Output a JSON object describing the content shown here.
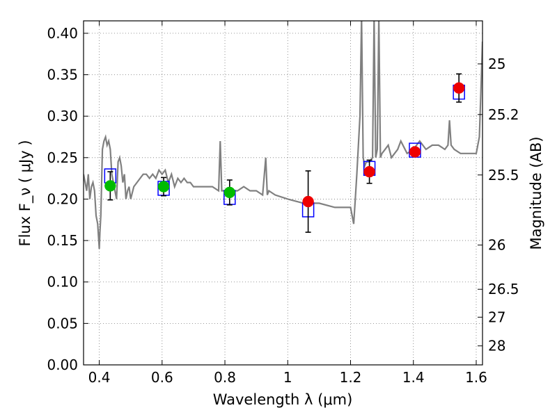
{
  "chart_data": {
    "type": "scatter",
    "xlabel": "Wavelength  λ (μm)",
    "ylabel": "Flux  F_ν  ( μJy )",
    "y2label": "Magnitude (AB)",
    "xlim": [
      0.35,
      1.62
    ],
    "ylim": [
      0.0,
      0.415
    ],
    "grid": true,
    "x_ticks": [
      0.4,
      0.6,
      0.8,
      1.0,
      1.2,
      1.4,
      1.6
    ],
    "x_tick_labels": [
      "0.4",
      "0.6",
      "0.8",
      "1",
      "1.2",
      "1.4",
      "1.6"
    ],
    "y_ticks": [
      0.0,
      0.05,
      0.1,
      0.15,
      0.2,
      0.25,
      0.3,
      0.35,
      0.4
    ],
    "y_tick_labels": [
      "0.00",
      "0.05",
      "0.10",
      "0.15",
      "0.20",
      "0.25",
      "0.30",
      "0.35",
      "0.40"
    ],
    "y2_ticks": [
      25,
      25.2,
      25.5,
      26,
      26.5,
      27,
      28
    ],
    "y2_tick_labels": [
      "25",
      "25.2",
      "25.5",
      "26",
      "26.5",
      "27",
      "28"
    ],
    "series": [
      {
        "kind": "model",
        "color": "#808080",
        "x": [
          0.35,
          0.36,
          0.365,
          0.37,
          0.375,
          0.38,
          0.385,
          0.39,
          0.395,
          0.4,
          0.402,
          0.405,
          0.41,
          0.415,
          0.42,
          0.425,
          0.43,
          0.435,
          0.44,
          0.445,
          0.45,
          0.455,
          0.46,
          0.465,
          0.47,
          0.475,
          0.48,
          0.485,
          0.49,
          0.495,
          0.5,
          0.51,
          0.52,
          0.53,
          0.54,
          0.55,
          0.56,
          0.57,
          0.58,
          0.59,
          0.6,
          0.61,
          0.62,
          0.63,
          0.64,
          0.65,
          0.66,
          0.67,
          0.68,
          0.69,
          0.7,
          0.72,
          0.74,
          0.76,
          0.78,
          0.785,
          0.79,
          0.8,
          0.82,
          0.84,
          0.86,
          0.88,
          0.9,
          0.92,
          0.93,
          0.935,
          0.94,
          0.96,
          1.0,
          1.05,
          1.1,
          1.15,
          1.2,
          1.21,
          1.215,
          1.22,
          1.23,
          1.235,
          1.24,
          1.245,
          1.25,
          1.26,
          1.27,
          1.275,
          1.28,
          1.285,
          1.29,
          1.295,
          1.3,
          1.31,
          1.32,
          1.33,
          1.34,
          1.35,
          1.36,
          1.38,
          1.4,
          1.42,
          1.44,
          1.46,
          1.48,
          1.5,
          1.51,
          1.515,
          1.52,
          1.53,
          1.55,
          1.58,
          1.6,
          1.61,
          1.615,
          1.62
        ],
        "y": [
          0.23,
          0.21,
          0.23,
          0.2,
          0.215,
          0.22,
          0.21,
          0.18,
          0.17,
          0.14,
          0.16,
          0.18,
          0.26,
          0.27,
          0.275,
          0.265,
          0.27,
          0.26,
          0.23,
          0.22,
          0.21,
          0.2,
          0.245,
          0.25,
          0.24,
          0.22,
          0.23,
          0.2,
          0.21,
          0.215,
          0.2,
          0.215,
          0.22,
          0.225,
          0.23,
          0.23,
          0.225,
          0.23,
          0.225,
          0.235,
          0.23,
          0.235,
          0.22,
          0.23,
          0.215,
          0.225,
          0.22,
          0.225,
          0.22,
          0.22,
          0.215,
          0.215,
          0.215,
          0.215,
          0.21,
          0.27,
          0.21,
          0.21,
          0.21,
          0.21,
          0.215,
          0.21,
          0.21,
          0.205,
          0.25,
          0.205,
          0.21,
          0.205,
          0.2,
          0.195,
          0.195,
          0.19,
          0.19,
          0.17,
          0.2,
          0.23,
          0.3,
          0.42,
          0.25,
          0.24,
          0.245,
          0.245,
          0.25,
          0.42,
          0.25,
          0.26,
          0.42,
          0.25,
          0.255,
          0.26,
          0.265,
          0.25,
          0.255,
          0.26,
          0.27,
          0.255,
          0.26,
          0.27,
          0.26,
          0.265,
          0.265,
          0.26,
          0.265,
          0.295,
          0.265,
          0.26,
          0.255,
          0.255,
          0.255,
          0.275,
          0.33,
          0.39
        ]
      },
      {
        "kind": "model-photometry",
        "marker": "square",
        "color": "#0000ff",
        "x": [
          0.435,
          0.605,
          0.815,
          1.065,
          1.26,
          1.405,
          1.545
        ],
        "y": [
          0.228,
          0.213,
          0.202,
          0.187,
          0.237,
          0.259,
          0.329
        ]
      },
      {
        "kind": "observed",
        "marker": "circle",
        "color": "#00bb00",
        "x": [
          0.435,
          0.605,
          0.815
        ],
        "y": [
          0.216,
          0.215,
          0.208
        ],
        "yerr": [
          0.017,
          0.011,
          0.015
        ]
      },
      {
        "kind": "observed",
        "marker": "circle",
        "color": "#ee0000",
        "x": [
          1.065,
          1.26,
          1.405,
          1.545
        ],
        "y": [
          0.197,
          0.233,
          0.257,
          0.334
        ],
        "yerr": [
          0.037,
          0.014,
          0.0,
          0.017
        ]
      }
    ]
  }
}
